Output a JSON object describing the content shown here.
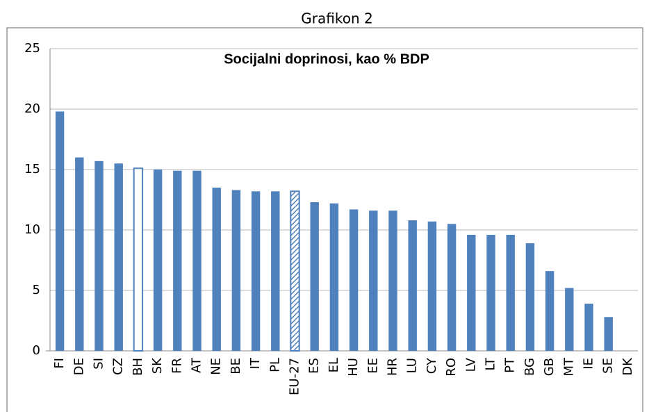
{
  "heading": "Grafikon 2",
  "chart_data": {
    "type": "bar",
    "title": "Socijalni doprinosi, kao % BDP",
    "categories": [
      "FI",
      "DE",
      "SI",
      "CZ",
      "BH",
      "SK",
      "FR",
      "AT",
      "NE",
      "BE",
      "IT",
      "PL",
      "EU-27",
      "ES",
      "EL",
      "HU",
      "EE",
      "HR",
      "LU",
      "CY",
      "RO",
      "LV",
      "LT",
      "PT",
      "BG",
      "GB",
      "MT",
      "IE",
      "SE",
      "DK"
    ],
    "values": [
      19.8,
      16.0,
      15.7,
      15.5,
      15.1,
      15.0,
      14.9,
      14.9,
      13.5,
      13.3,
      13.2,
      13.2,
      13.2,
      12.3,
      12.2,
      11.7,
      11.6,
      11.6,
      10.8,
      10.7,
      10.5,
      9.6,
      9.6,
      9.6,
      8.9,
      6.6,
      5.2,
      3.9,
      2.8,
      0
    ],
    "bar_styles": [
      "solid",
      "solid",
      "solid",
      "solid",
      "outline",
      "solid",
      "solid",
      "solid",
      "solid",
      "solid",
      "solid",
      "solid",
      "hatch",
      "solid",
      "solid",
      "solid",
      "solid",
      "solid",
      "solid",
      "solid",
      "solid",
      "solid",
      "solid",
      "solid",
      "solid",
      "solid",
      "solid",
      "solid",
      "solid",
      "solid"
    ],
    "color": "#4f81bd",
    "ylim": [
      0,
      25
    ],
    "yticks": [
      0,
      5,
      10,
      15,
      20,
      25
    ],
    "grid": true
  }
}
